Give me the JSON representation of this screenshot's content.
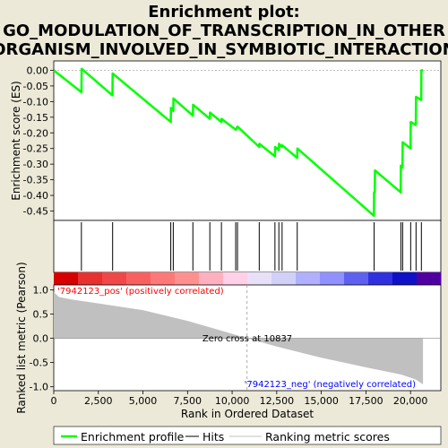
{
  "title_line1": "Enrichment plot:",
  "title_line2": "GO_MODULATION_OF_TRANSCRIPTION_IN_OTHER",
  "title_line3": "ORGANISM_INVOLVED_IN_SYMBIOTIC_INTERACTION",
  "colors": {
    "background": "#ece9d8",
    "es_line": "#00ff00",
    "metric_fill": "#c0c0c0",
    "pos_label": "#ff0000",
    "neg_label": "#0000ff"
  },
  "chart_data": [
    {
      "type": "line",
      "panel": "enrichment",
      "ylabel": "Enrichment score (ES)",
      "ylim": [
        -0.48,
        0.03
      ],
      "yticks": [
        "0.00",
        "-0.05",
        "-0.10",
        "-0.15",
        "-0.20",
        "-0.25",
        "-0.30",
        "-0.35",
        "-0.40",
        "-0.45"
      ],
      "ytick_values": [
        0,
        -0.05,
        -0.1,
        -0.15,
        -0.2,
        -0.25,
        -0.3,
        -0.35,
        -0.4,
        -0.45
      ],
      "xlim": [
        0,
        21700
      ],
      "series": [
        {
          "name": "Enrichment profile",
          "x": [
            0,
            1550,
            1560,
            3290,
            3300,
            6560,
            6570,
            6700,
            6710,
            7800,
            7810,
            8750,
            8760,
            9400,
            9410,
            10200,
            10300,
            11520,
            11530,
            12400,
            12410,
            12620,
            12630,
            12800,
            12810,
            13650,
            13660,
            17950,
            17960,
            18000,
            18010,
            19450,
            19460,
            19550,
            19560,
            20000,
            20010,
            20300,
            20310,
            20600,
            20610,
            20700
          ],
          "y": [
            0.0,
            -0.07,
            0.005,
            -0.08,
            -0.01,
            -0.165,
            -0.12,
            -0.13,
            -0.09,
            -0.145,
            -0.11,
            -0.155,
            -0.135,
            -0.165,
            -0.155,
            -0.19,
            -0.18,
            -0.245,
            -0.235,
            -0.275,
            -0.245,
            -0.255,
            -0.235,
            -0.245,
            -0.24,
            -0.28,
            -0.25,
            -0.465,
            -0.39,
            -0.39,
            -0.32,
            -0.39,
            -0.305,
            -0.31,
            -0.23,
            -0.25,
            -0.165,
            -0.175,
            -0.085,
            -0.095,
            -0.0,
            0.0
          ]
        }
      ]
    },
    {
      "type": "scatter",
      "panel": "hits",
      "series": [
        {
          "name": "Hits",
          "x": [
            1550,
            3300,
            6560,
            6700,
            7800,
            8750,
            9400,
            10200,
            10300,
            11520,
            12400,
            12620,
            12800,
            13650,
            17960,
            19460,
            19560,
            20010,
            20310,
            20610
          ]
        }
      ]
    },
    {
      "type": "area",
      "panel": "metric",
      "ylabel": "Ranked list metric (Pearson)",
      "xlabel": "Rank in Ordered Dataset",
      "xlim": [
        0,
        21700
      ],
      "ylim": [
        -1.08,
        1.1
      ],
      "xticks": [
        "0",
        "2,500",
        "5,000",
        "7,500",
        "10,000",
        "12,500",
        "15,000",
        "17,500",
        "20,000"
      ],
      "xtick_values": [
        0,
        2500,
        5000,
        7500,
        10000,
        12500,
        15000,
        17500,
        20000
      ],
      "yticks": [
        "1.0",
        "0.5",
        "0.0",
        "-0.5",
        "-1.0"
      ],
      "ytick_values": [
        1.0,
        0.5,
        0.0,
        -0.5,
        -1.0
      ],
      "series": [
        {
          "name": "Ranking metric scores",
          "x": [
            0,
            300,
            1000,
            2500,
            5000,
            7500,
            9000,
            10837,
            12500,
            15000,
            17500,
            19500,
            20300,
            20700
          ],
          "y": [
            0.95,
            0.85,
            0.8,
            0.72,
            0.58,
            0.36,
            0.2,
            0.0,
            -0.17,
            -0.4,
            -0.6,
            -0.75,
            -0.85,
            -0.95
          ]
        }
      ],
      "zero_cross_x": 10837,
      "zero_cross_label": "Zero cross at 10837",
      "pos_label": "'7942123_pos' (positively correlated)",
      "neg_label": "'7942123_neg' (negatively correlated)"
    }
  ],
  "heatbar": {
    "colors": [
      "#d60000",
      "#e83030",
      "#f04848",
      "#f86060",
      "#ff7878",
      "#ff9090",
      "#ffb0c0",
      "#ffd0e8",
      "#e8e0f8",
      "#d0d0f8",
      "#b0b0ff",
      "#9090ff",
      "#6060f0",
      "#3030e0",
      "#1010c8",
      "#5000a0"
    ]
  },
  "legend": {
    "items": [
      {
        "label": "Enrichment profile",
        "color": "#00ff00"
      },
      {
        "label": "Hits",
        "color": "#000000"
      },
      {
        "label": "Ranking metric scores",
        "color": "#c0c0c0"
      }
    ]
  }
}
